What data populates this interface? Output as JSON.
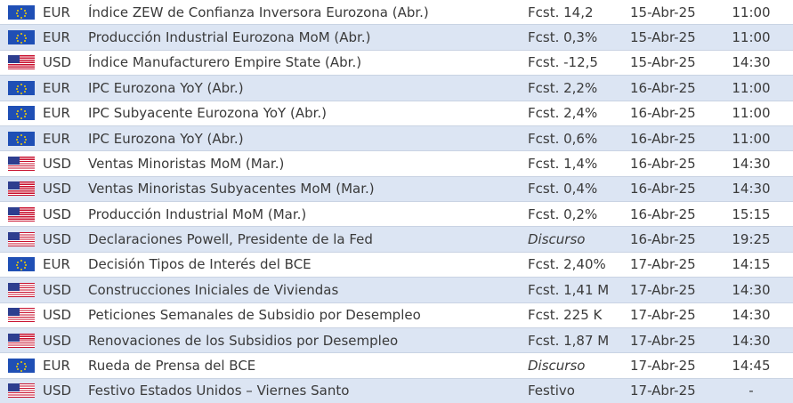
{
  "table": {
    "rows": [
      [
        "EUR",
        "Índice ZEW de Confianza Inversora Eurozona (Abr.)",
        "Fcst. 14,2",
        "15-Abr-25",
        "11:00"
      ],
      [
        "EUR",
        "Producción Industrial Eurozona MoM (Abr.)",
        "Fcst. 0,3%",
        "15-Abr-25",
        "11:00"
      ],
      [
        "USD",
        "Índice Manufacturero Empire State (Abr.)",
        "Fcst. -12,5",
        "15-Abr-25",
        "14:30"
      ],
      [
        "EUR",
        "IPC Eurozona YoY (Abr.)",
        "Fcst. 2,2%",
        "16-Abr-25",
        "11:00"
      ],
      [
        "EUR",
        "IPC Subyacente Eurozona YoY (Abr.)",
        "Fcst. 2,4%",
        "16-Abr-25",
        "11:00"
      ],
      [
        "EUR",
        "IPC Eurozona YoY (Abr.)",
        "Fcst. 0,6%",
        "16-Abr-25",
        "11:00"
      ],
      [
        "USD",
        "Ventas Minoristas MoM (Mar.)",
        "Fcst. 1,4%",
        "16-Abr-25",
        "14:30"
      ],
      [
        "USD",
        "Ventas Minoristas Subyacentes MoM (Mar.)",
        "Fcst. 0,4%",
        "16-Abr-25",
        "14:30"
      ],
      [
        "USD",
        "Producción Industrial MoM (Mar.)",
        "Fcst. 0,2%",
        "16-Abr-25",
        "15:15"
      ],
      [
        "USD",
        "Declaraciones Powell, Presidente de la Fed",
        "Discurso",
        "16-Abr-25",
        "19:25"
      ],
      [
        "EUR",
        "Decisión Tipos de Interés del BCE",
        "Fcst. 2,40%",
        "17-Abr-25",
        "14:15"
      ],
      [
        "USD",
        "Construcciones Iniciales de Viviendas",
        "Fcst. 1,41 M",
        "17-Abr-25",
        "14:30"
      ],
      [
        "USD",
        "Peticiones Semanales de Subsidio por Desempleo",
        "Fcst. 225 K",
        "17-Abr-25",
        "14:30"
      ],
      [
        "USD",
        "Renovaciones de los Subsidios por Desempleo",
        "Fcst. 1,87 M",
        "17-Abr-25",
        "14:30"
      ],
      [
        "EUR",
        "Rueda de Prensa del BCE",
        "Discurso",
        "17-Abr-25",
        "14:45"
      ],
      [
        "USD",
        "Festivo Estados Unidos – Viernes Santo",
        "Festivo",
        "17-Abr-25",
        "-"
      ]
    ]
  }
}
